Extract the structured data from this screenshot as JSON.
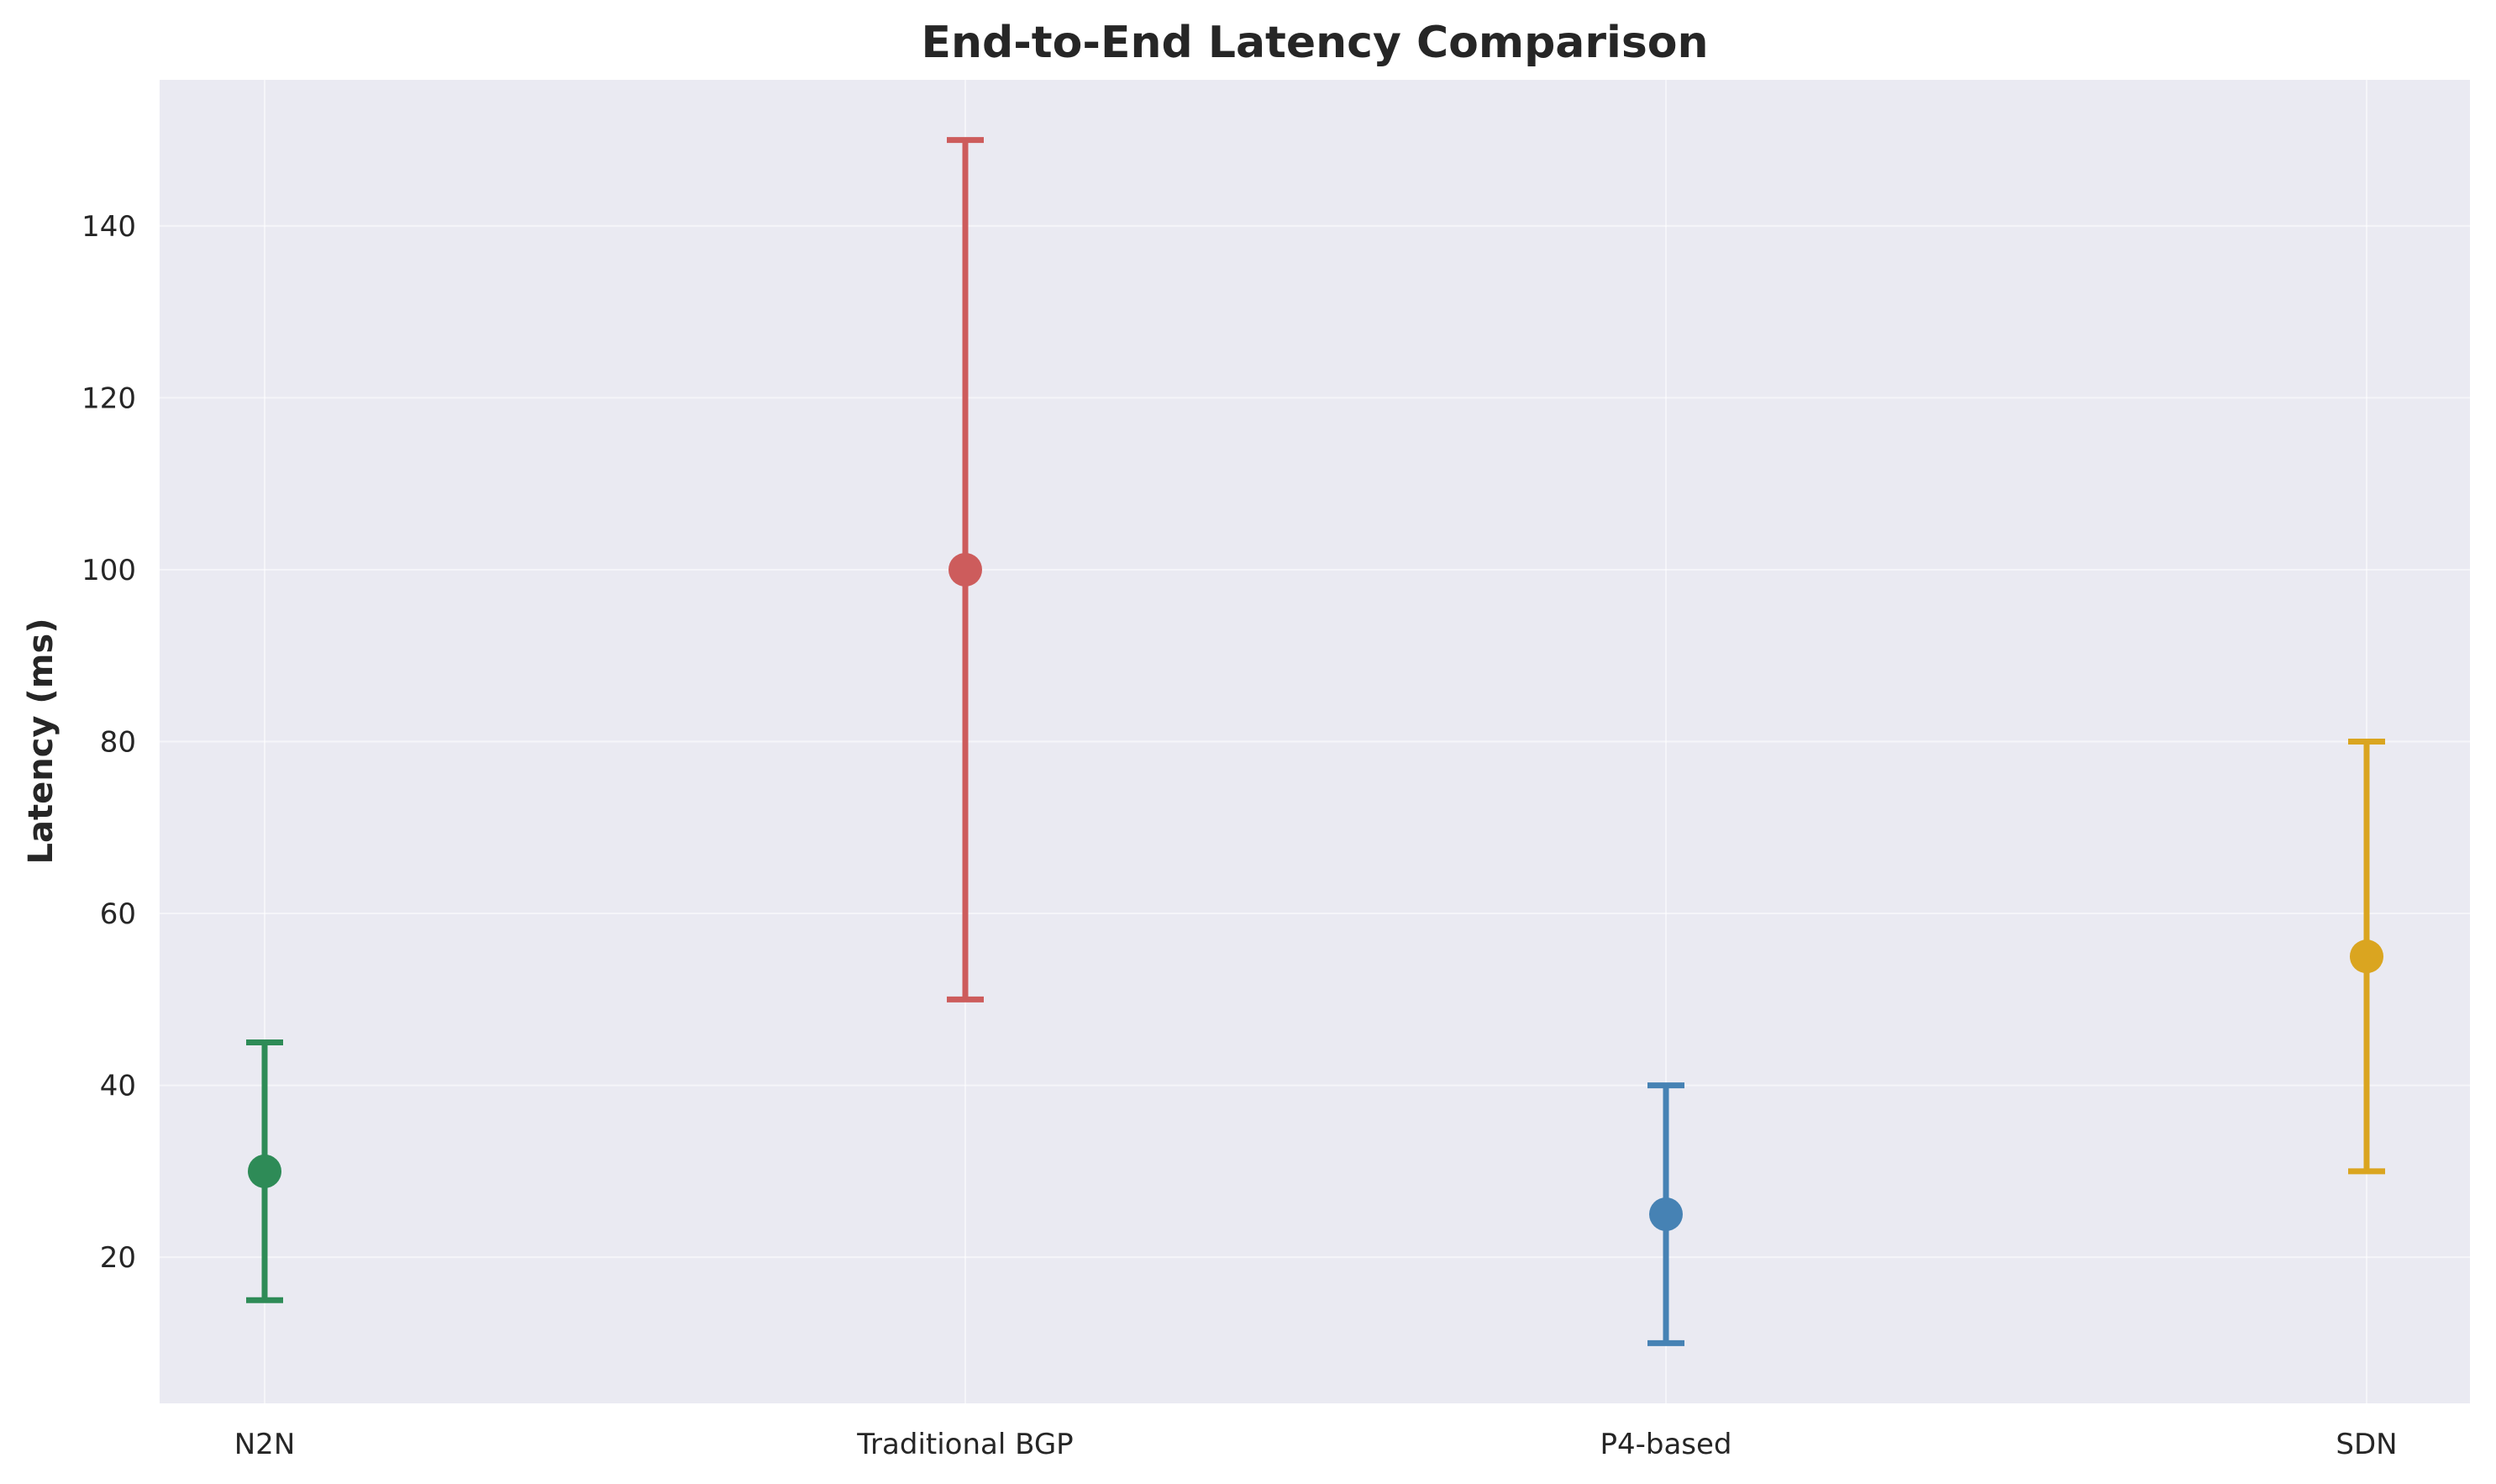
{
  "chart_data": {
    "type": "errorbar",
    "title": "End-to-End Latency Comparison",
    "xlabel": "",
    "ylabel": "Latency (ms)",
    "categories": [
      "N2N",
      "Traditional BGP",
      "P4-based",
      "SDN"
    ],
    "points": [
      {
        "category": "N2N",
        "value": 30,
        "lower": 15,
        "upper": 45,
        "color": "#2e8b57"
      },
      {
        "category": "Traditional BGP",
        "value": 100,
        "lower": 50,
        "upper": 150,
        "color": "#cd5c5c"
      },
      {
        "category": "P4-based",
        "value": 25,
        "lower": 10,
        "upper": 40,
        "color": "#4682b4"
      },
      {
        "category": "SDN",
        "value": 55,
        "lower": 30,
        "upper": 80,
        "color": "#daa520"
      }
    ],
    "ylim": [
      3,
      157
    ],
    "yticks": [
      20,
      40,
      60,
      80,
      100,
      120,
      140
    ],
    "grid": true,
    "legend": "none",
    "background_color": "#eaeaf2",
    "grid_color": "#ffffff"
  }
}
